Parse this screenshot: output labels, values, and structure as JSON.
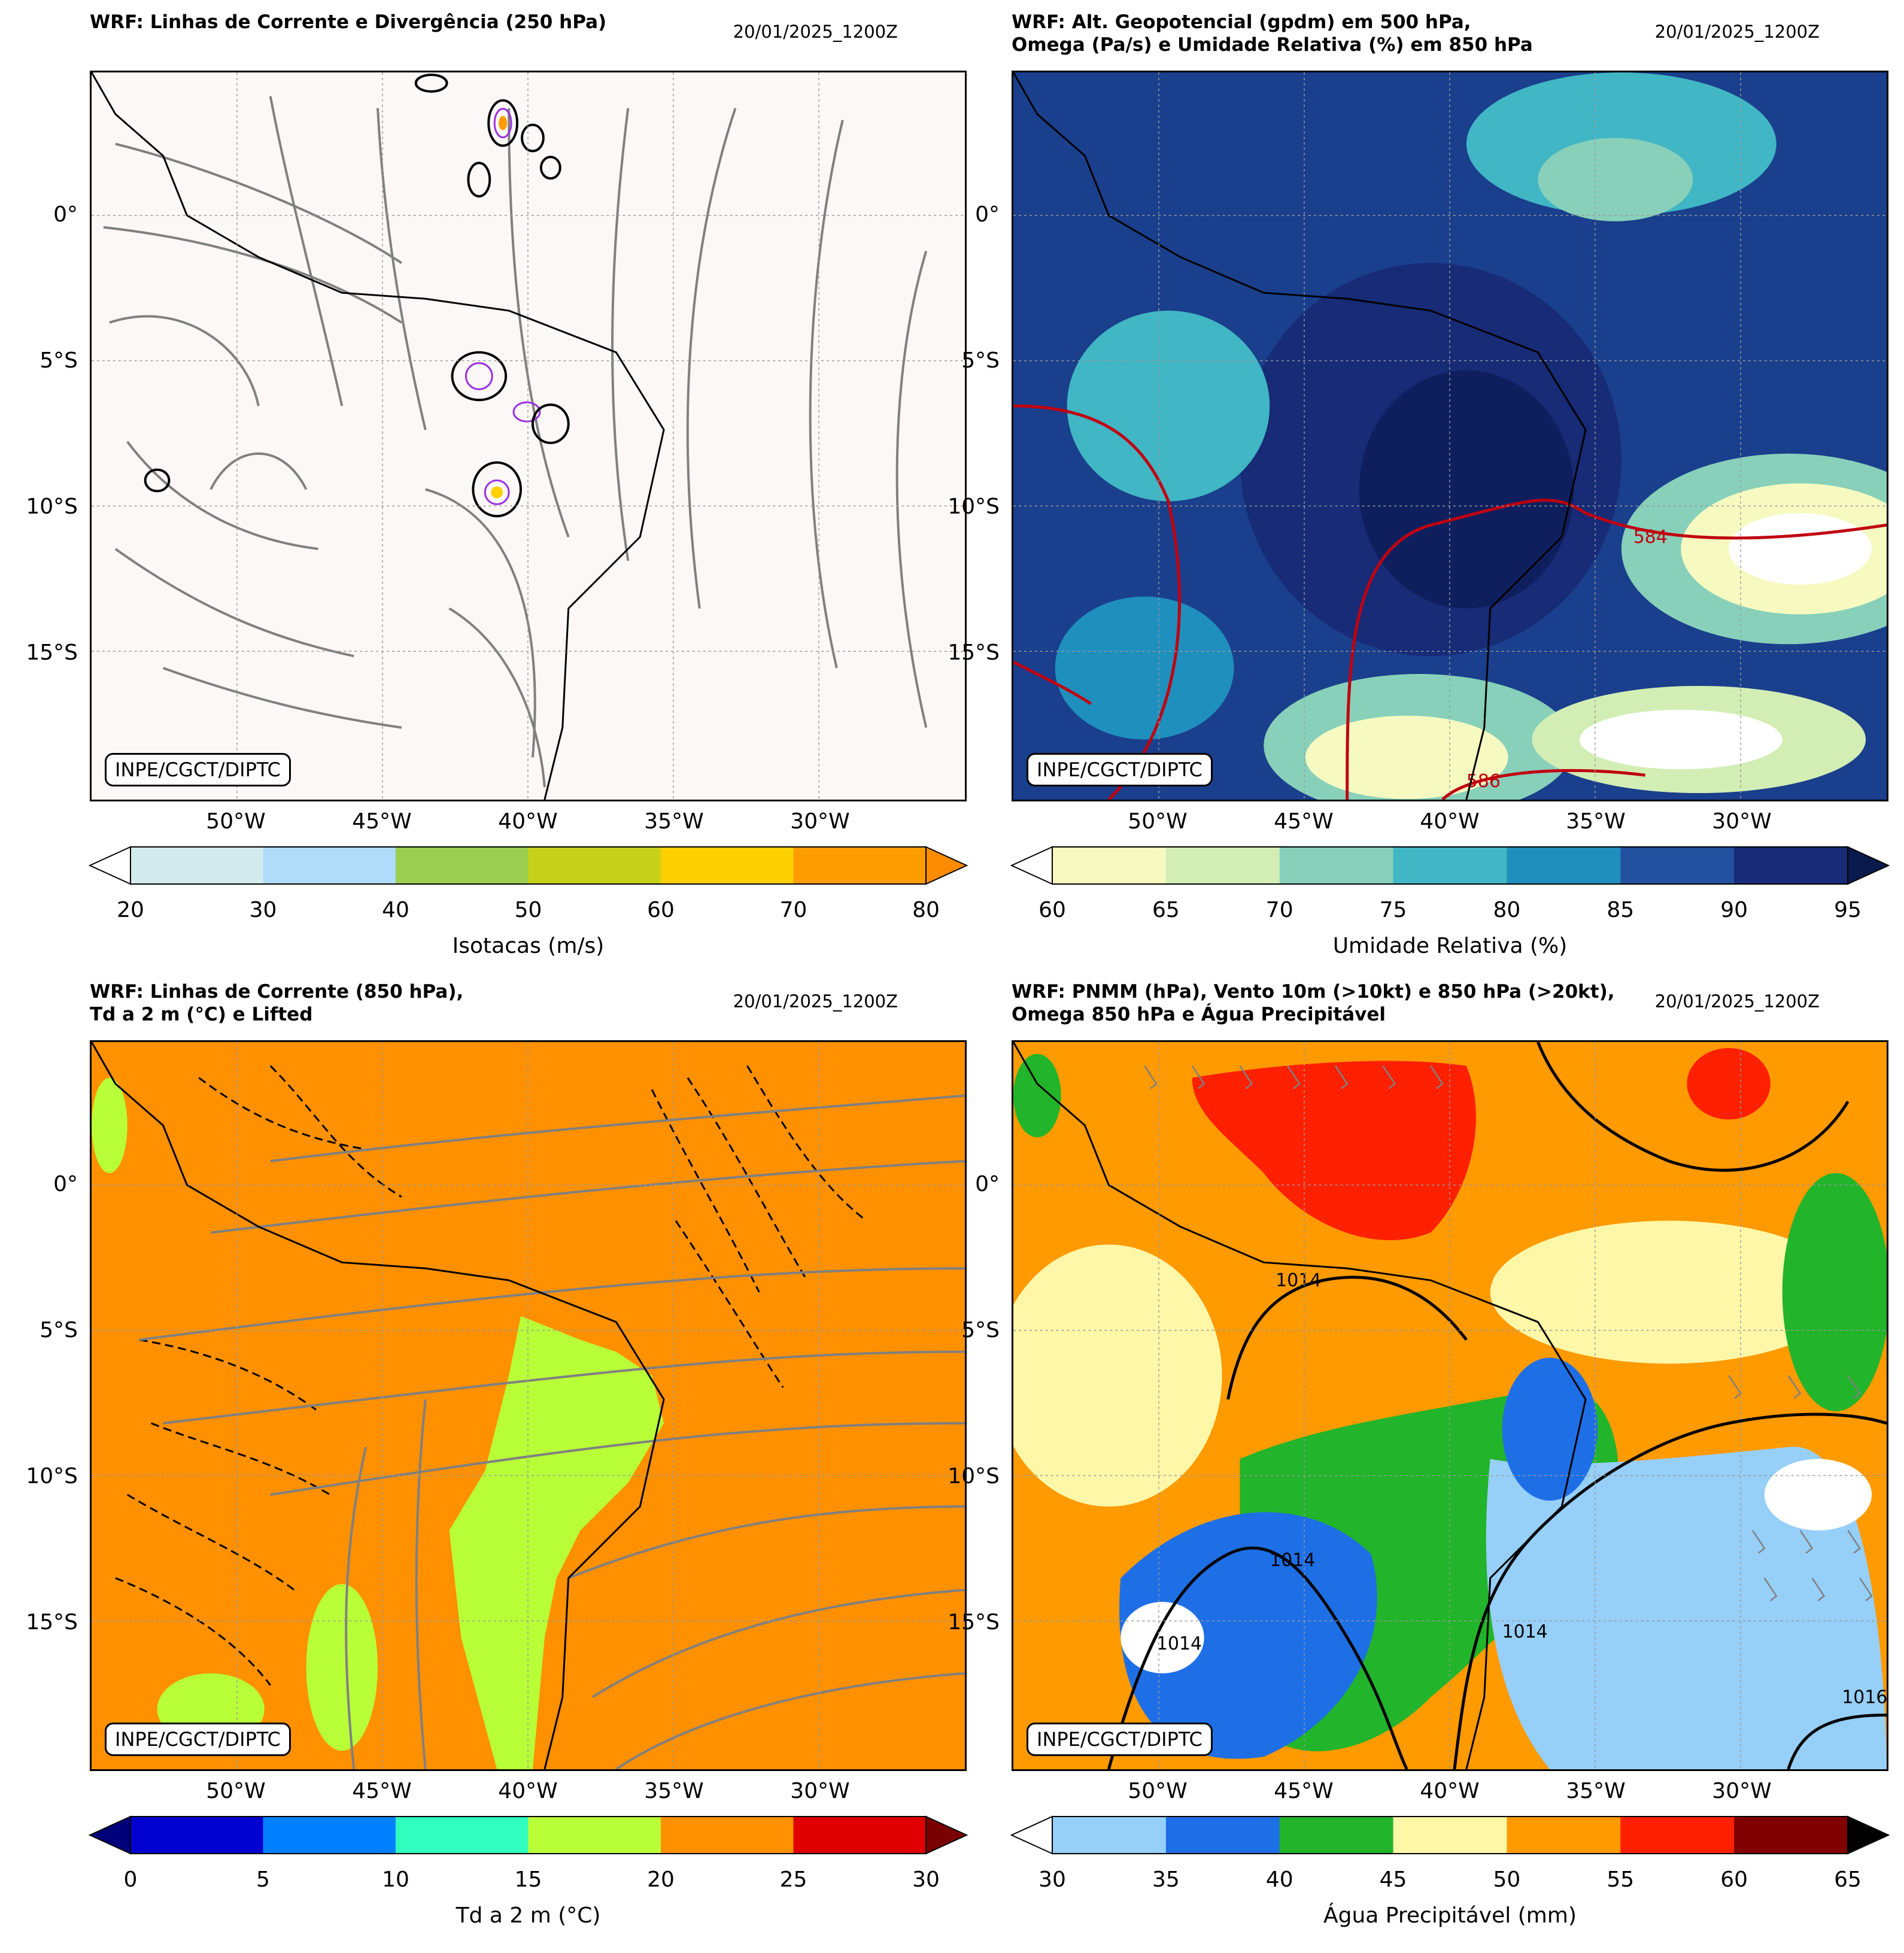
{
  "lat_labels": [
    "0°",
    "5°S",
    "10°S",
    "15°S"
  ],
  "lon_labels": [
    "50°W",
    "45°W",
    "40°W",
    "35°W",
    "30°W"
  ],
  "badge": "INPE/CGCT/DIPTC",
  "panels": [
    {
      "title": "WRF: Linhas de Corrente e Divergência (250 hPa)",
      "date": "20/01/2025_1200Z",
      "background": "#fcf8f7",
      "colorbar": {
        "label": "Isotacas (m/s)",
        "ticks": [
          "20",
          "30",
          "40",
          "50",
          "60",
          "70",
          "80"
        ],
        "colors": [
          "#d4ebee",
          "#b0dcfa",
          "#9acd50",
          "#c7d11a",
          "#ffd000",
          "#ff9d00"
        ],
        "under": "#ffffff",
        "over": "#ff8c00"
      }
    },
    {
      "title": "WRF: Alt. Geopotencial (gpdm) em 500 hPa,\nOmega (Pa/s) e Umidade Relativa (%) em 850 hPa",
      "date": "20/01/2025_1200Z",
      "background": "#1a3f8c",
      "contour_labels": [
        "584",
        "586"
      ],
      "colorbar": {
        "label": "Umidade Relativa (%)",
        "ticks": [
          "60",
          "65",
          "70",
          "75",
          "80",
          "85",
          "90",
          "95"
        ],
        "colors": [
          "#f6fac0",
          "#d3eeb5",
          "#88d0ba",
          "#41b6c4",
          "#1f8fbe",
          "#2251a0",
          "#172b77"
        ],
        "under": "#ffffff",
        "over": "#0a1a4d"
      }
    },
    {
      "title": "WRF: Linhas de Corrente (850 hPa),\nTd a 2 m (°C) e Lifted",
      "date": "20/01/2025_1200Z",
      "background": "#ff9000",
      "colorbar": {
        "label": "Td a 2 m (°C)",
        "ticks": [
          "0",
          "5",
          "10",
          "15",
          "20",
          "25",
          "30"
        ],
        "colors": [
          "#0000d0",
          "#0080ff",
          "#30ffc0",
          "#b8ff38",
          "#ff9000",
          "#e00000"
        ],
        "under": "#00007a",
        "over": "#7a0000"
      }
    },
    {
      "title": "WRF: PNMM (hPa), Vento 10m (>10kt) e 850 hPa (>20kt),\nOmega 850 hPa e Água Precipitável",
      "date": "20/01/2025_1200Z",
      "background": "#ff9a00",
      "contour_labels": [
        "1014",
        "1014",
        "1014",
        "1014",
        "1016"
      ],
      "colorbar": {
        "label": "Água Precipitável (mm)",
        "ticks": [
          "30",
          "35",
          "40",
          "45",
          "50",
          "55",
          "60",
          "65"
        ],
        "colors": [
          "#96cff8",
          "#1e6fe6",
          "#22b42a",
          "#fff7a8",
          "#ff9a00",
          "#ff2000",
          "#800000"
        ],
        "under": "#ffffff",
        "over": "#000000"
      }
    }
  ]
}
